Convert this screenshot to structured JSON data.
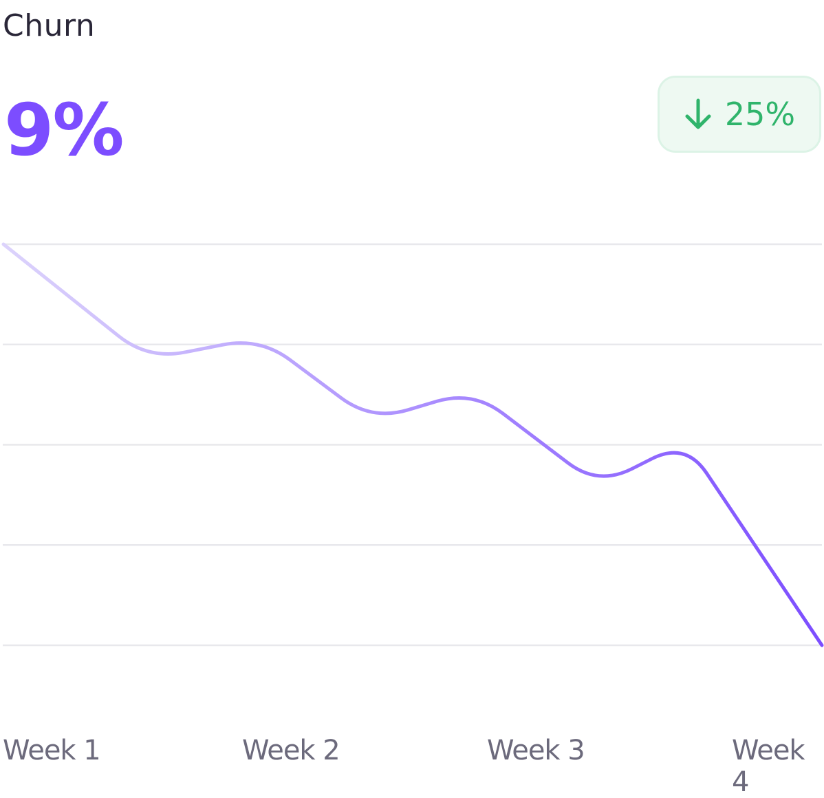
{
  "card": {
    "title": "Churn",
    "value": "9%",
    "change": {
      "direction": "down",
      "icon": "arrow-down-icon",
      "label": "25%",
      "color": "#2fb46b"
    }
  },
  "chart_data": {
    "type": "line",
    "title": "",
    "xlabel": "",
    "ylabel": "",
    "categories": [
      "Week 1",
      "Week 2",
      "Week 3",
      "Week 4"
    ],
    "x": [
      0,
      0.53,
      0.94,
      1.35,
      1.72,
      2.18,
      2.5,
      3
    ],
    "values": [
      4.0,
      2.85,
      3.07,
      2.24,
      2.54,
      1.59,
      2.03,
      0.0
    ],
    "ylim": [
      0,
      4
    ],
    "xlim": [
      0,
      3
    ],
    "grid": true,
    "gridlines": 5,
    "line_gradient": [
      "#dcd3fc",
      "#7c4dff"
    ]
  }
}
